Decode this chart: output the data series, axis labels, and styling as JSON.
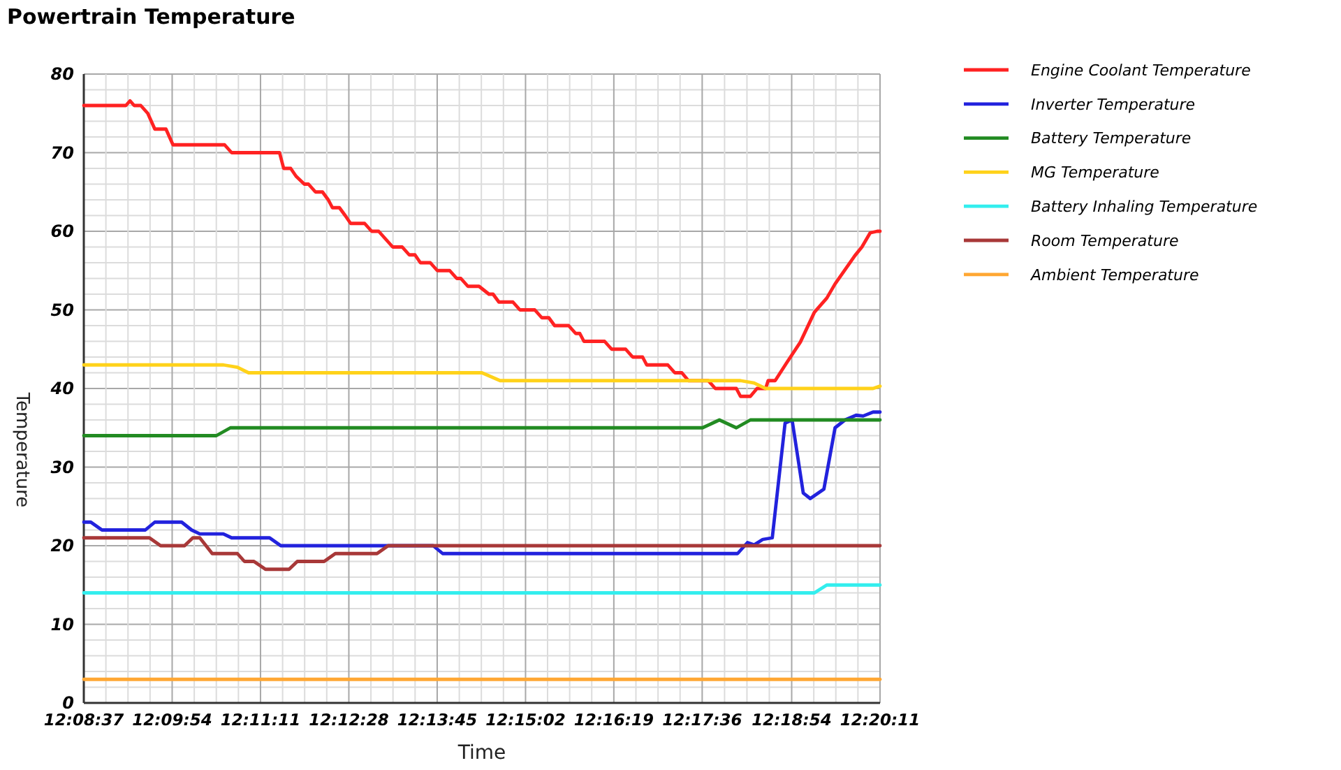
{
  "chart_data": {
    "type": "line",
    "title": "Powertrain Temperature",
    "xlabel": "Time",
    "ylabel": "Temperature",
    "xlim": [
      12.14361,
      12.33639
    ],
    "ylim": [
      0,
      80
    ],
    "xticks": [
      {
        "value": 12.14361,
        "label": "12:08:37"
      },
      {
        "value": 12.14896,
        "label": null
      },
      {
        "value": 12.15431,
        "label": null
      },
      {
        "value": 12.15965,
        "label": null
      },
      {
        "value": 12.165,
        "label": "12:09:54"
      },
      {
        "value": 12.17035,
        "label": null
      },
      {
        "value": 12.17569,
        "label": null
      },
      {
        "value": 12.18104,
        "label": null
      },
      {
        "value": 12.18639,
        "label": "12:11:11"
      },
      {
        "value": 12.19174,
        "label": null
      },
      {
        "value": 12.19708,
        "label": null
      },
      {
        "value": 12.20243,
        "label": null
      },
      {
        "value": 12.20778,
        "label": "12:12:28"
      },
      {
        "value": 12.21313,
        "label": null
      },
      {
        "value": 12.21847,
        "label": null
      },
      {
        "value": 12.22382,
        "label": null
      },
      {
        "value": 12.22917,
        "label": "12:13:45"
      },
      {
        "value": 12.23452,
        "label": null
      },
      {
        "value": 12.23986,
        "label": null
      },
      {
        "value": 12.24521,
        "label": null
      },
      {
        "value": 12.25056,
        "label": "12:15:02"
      },
      {
        "value": 12.2559,
        "label": null
      },
      {
        "value": 12.26125,
        "label": null
      },
      {
        "value": 12.26659,
        "label": null
      },
      {
        "value": 12.27194,
        "label": "12:16:19"
      },
      {
        "value": 12.27729,
        "label": null
      },
      {
        "value": 12.28264,
        "label": null
      },
      {
        "value": 12.28798,
        "label": null
      },
      {
        "value": 12.29333,
        "label": "12:17:36"
      },
      {
        "value": 12.29875,
        "label": null
      },
      {
        "value": 12.30417,
        "label": null
      },
      {
        "value": 12.30958,
        "label": null
      },
      {
        "value": 12.315,
        "label": "12:18:54"
      },
      {
        "value": 12.32035,
        "label": null
      },
      {
        "value": 12.32569,
        "label": null
      },
      {
        "value": 12.33104,
        "label": null
      },
      {
        "value": 12.33639,
        "label": "12:20:11"
      }
    ],
    "yticks": [
      0,
      {
        "value": 2,
        "label": null
      },
      {
        "value": 4,
        "label": null
      },
      {
        "value": 6,
        "label": null
      },
      {
        "value": 8,
        "label": null
      },
      10,
      {
        "value": 12,
        "label": null
      },
      {
        "value": 14,
        "label": null
      },
      {
        "value": 16,
        "label": null
      },
      {
        "value": 18,
        "label": null
      },
      20,
      {
        "value": 22,
        "label": null
      },
      {
        "value": 24,
        "label": null
      },
      {
        "value": 26,
        "label": null
      },
      {
        "value": 28,
        "label": null
      },
      30,
      {
        "value": 32,
        "label": null
      },
      {
        "value": 34,
        "label": null
      },
      {
        "value": 36,
        "label": null
      },
      {
        "value": 38,
        "label": null
      },
      40,
      {
        "value": 42,
        "label": null
      },
      {
        "value": 44,
        "label": null
      },
      {
        "value": 46,
        "label": null
      },
      {
        "value": 48,
        "label": null
      },
      50,
      {
        "value": 52,
        "label": null
      },
      {
        "value": 54,
        "label": null
      },
      {
        "value": 56,
        "label": null
      },
      {
        "value": 58,
        "label": null
      },
      60,
      {
        "value": 62,
        "label": null
      },
      {
        "value": 64,
        "label": null
      },
      {
        "value": 66,
        "label": null
      },
      {
        "value": 68,
        "label": null
      },
      70,
      {
        "value": 72,
        "label": null
      },
      {
        "value": 74,
        "label": null
      },
      {
        "value": 76,
        "label": null
      },
      {
        "value": 78,
        "label": null
      },
      80
    ],
    "grid": true,
    "legend": "top right",
    "series": [
      {
        "name": "Engine Coolant Temperature",
        "color": "#ff2222",
        "x": [
          12.14361,
          12.1538,
          12.1548,
          12.1558,
          12.1574,
          12.1591,
          12.1608,
          12.1635,
          12.1652,
          12.1777,
          12.1794,
          12.191,
          12.192,
          12.1937,
          12.195,
          12.197,
          12.198,
          12.1997,
          12.2014,
          12.2028,
          12.2038,
          12.2055,
          12.2069,
          12.2082,
          12.2116,
          12.2133,
          12.215,
          12.2167,
          12.2184,
          12.2207,
          12.2224,
          12.2238,
          12.2251,
          12.2275,
          12.2292,
          12.2322,
          12.2339,
          12.2349,
          12.2366,
          12.2393,
          12.2417,
          12.2427,
          12.2441,
          12.2475,
          12.2492,
          12.2528,
          12.2545,
          12.2562,
          12.2576,
          12.261,
          12.2627,
          12.2637,
          12.2647,
          12.2697,
          12.2714,
          12.2748,
          12.2765,
          12.2789,
          12.2799,
          12.285,
          12.2867,
          12.2884,
          12.29,
          12.2948,
          12.2965,
          12.3016,
          12.3026,
          12.305,
          12.3066,
          12.3087,
          12.3093,
          12.311,
          12.3137,
          12.3171,
          12.3205,
          12.3235,
          12.3255,
          12.3279,
          12.3303,
          12.332,
          12.334,
          12.3357,
          12.33639
        ],
        "values": [
          76,
          76,
          76.6,
          76,
          76,
          75,
          73,
          73,
          71,
          71,
          70,
          70,
          68,
          68,
          67,
          66,
          66,
          65,
          65,
          64,
          63,
          63,
          62,
          61,
          61,
          60,
          60,
          59,
          58,
          58,
          57,
          57,
          56,
          56,
          55,
          55,
          54,
          54,
          53,
          53,
          52,
          52,
          51,
          51,
          50,
          50,
          49,
          49,
          48,
          48,
          47,
          47,
          46,
          46,
          45,
          45,
          44,
          44,
          43,
          43,
          42,
          42,
          41,
          41,
          40,
          40,
          39,
          39,
          40,
          40,
          41,
          41,
          43.2,
          45.9,
          49.7,
          51.5,
          53.3,
          55.1,
          56.9,
          58,
          59.8,
          60,
          60
        ]
      },
      {
        "name": "Inverter Temperature",
        "color": "#2222dd",
        "x": [
          12.14361,
          12.1453,
          12.148,
          12.1585,
          12.1608,
          12.1673,
          12.1697,
          12.1717,
          12.1774,
          12.1794,
          12.1886,
          12.1913,
          12.2282,
          12.2305,
          12.3019,
          12.3043,
          12.3059,
          12.308,
          12.3103,
          12.3134,
          12.3151,
          12.3178,
          12.3195,
          12.3228,
          12.3255,
          12.3279,
          12.3306,
          12.3323,
          12.3347,
          12.33639
        ],
        "values": [
          23,
          23,
          22,
          22,
          23,
          23,
          22,
          21.5,
          21.5,
          21,
          21,
          20,
          20,
          19,
          19,
          20.4,
          20.1,
          20.8,
          21,
          35.6,
          36,
          26.7,
          26,
          27.2,
          35,
          36,
          36.6,
          36.5,
          37,
          37
        ]
      },
      {
        "name": "Battery Temperature",
        "color": "#228b22",
        "x": [
          12.14361,
          12.1757,
          12.1791,
          12.2934,
          12.2975,
          12.3016,
          12.305,
          12.33639
        ],
        "values": [
          34,
          34,
          35,
          35,
          36,
          35,
          36,
          36
        ]
      },
      {
        "name": "MG Temperature",
        "color": "#ffd21a",
        "x": [
          12.14361,
          12.1774,
          12.1808,
          12.1835,
          12.24,
          12.2444,
          12.3026,
          12.3059,
          12.3087,
          12.3347,
          12.33639
        ],
        "values": [
          43,
          43,
          42.7,
          42,
          42,
          41,
          41,
          40.7,
          40,
          40,
          40.3
        ]
      },
      {
        "name": "Battery Inhaling Temperature",
        "color": "#33eeee",
        "x": [
          12.14361,
          12.3205,
          12.3235,
          12.33639
        ],
        "values": [
          14,
          14,
          15,
          15
        ]
      },
      {
        "name": "Room Temperature",
        "color": "#a83838",
        "x": [
          12.14361,
          12.1595,
          12.1622,
          12.168,
          12.17,
          12.1717,
          12.1747,
          12.1808,
          12.1825,
          12.1848,
          12.1876,
          12.1933,
          12.1953,
          12.2018,
          12.2045,
          12.2146,
          12.2173,
          12.33639
        ],
        "values": [
          21,
          21,
          20,
          20,
          21,
          21,
          19,
          19,
          18,
          18,
          17,
          17,
          18,
          18,
          19,
          19,
          20,
          20
        ]
      },
      {
        "name": "Ambient Temperature",
        "color": "#ffa733",
        "x": [
          12.14361,
          12.33639
        ],
        "values": [
          3,
          3
        ]
      }
    ]
  }
}
